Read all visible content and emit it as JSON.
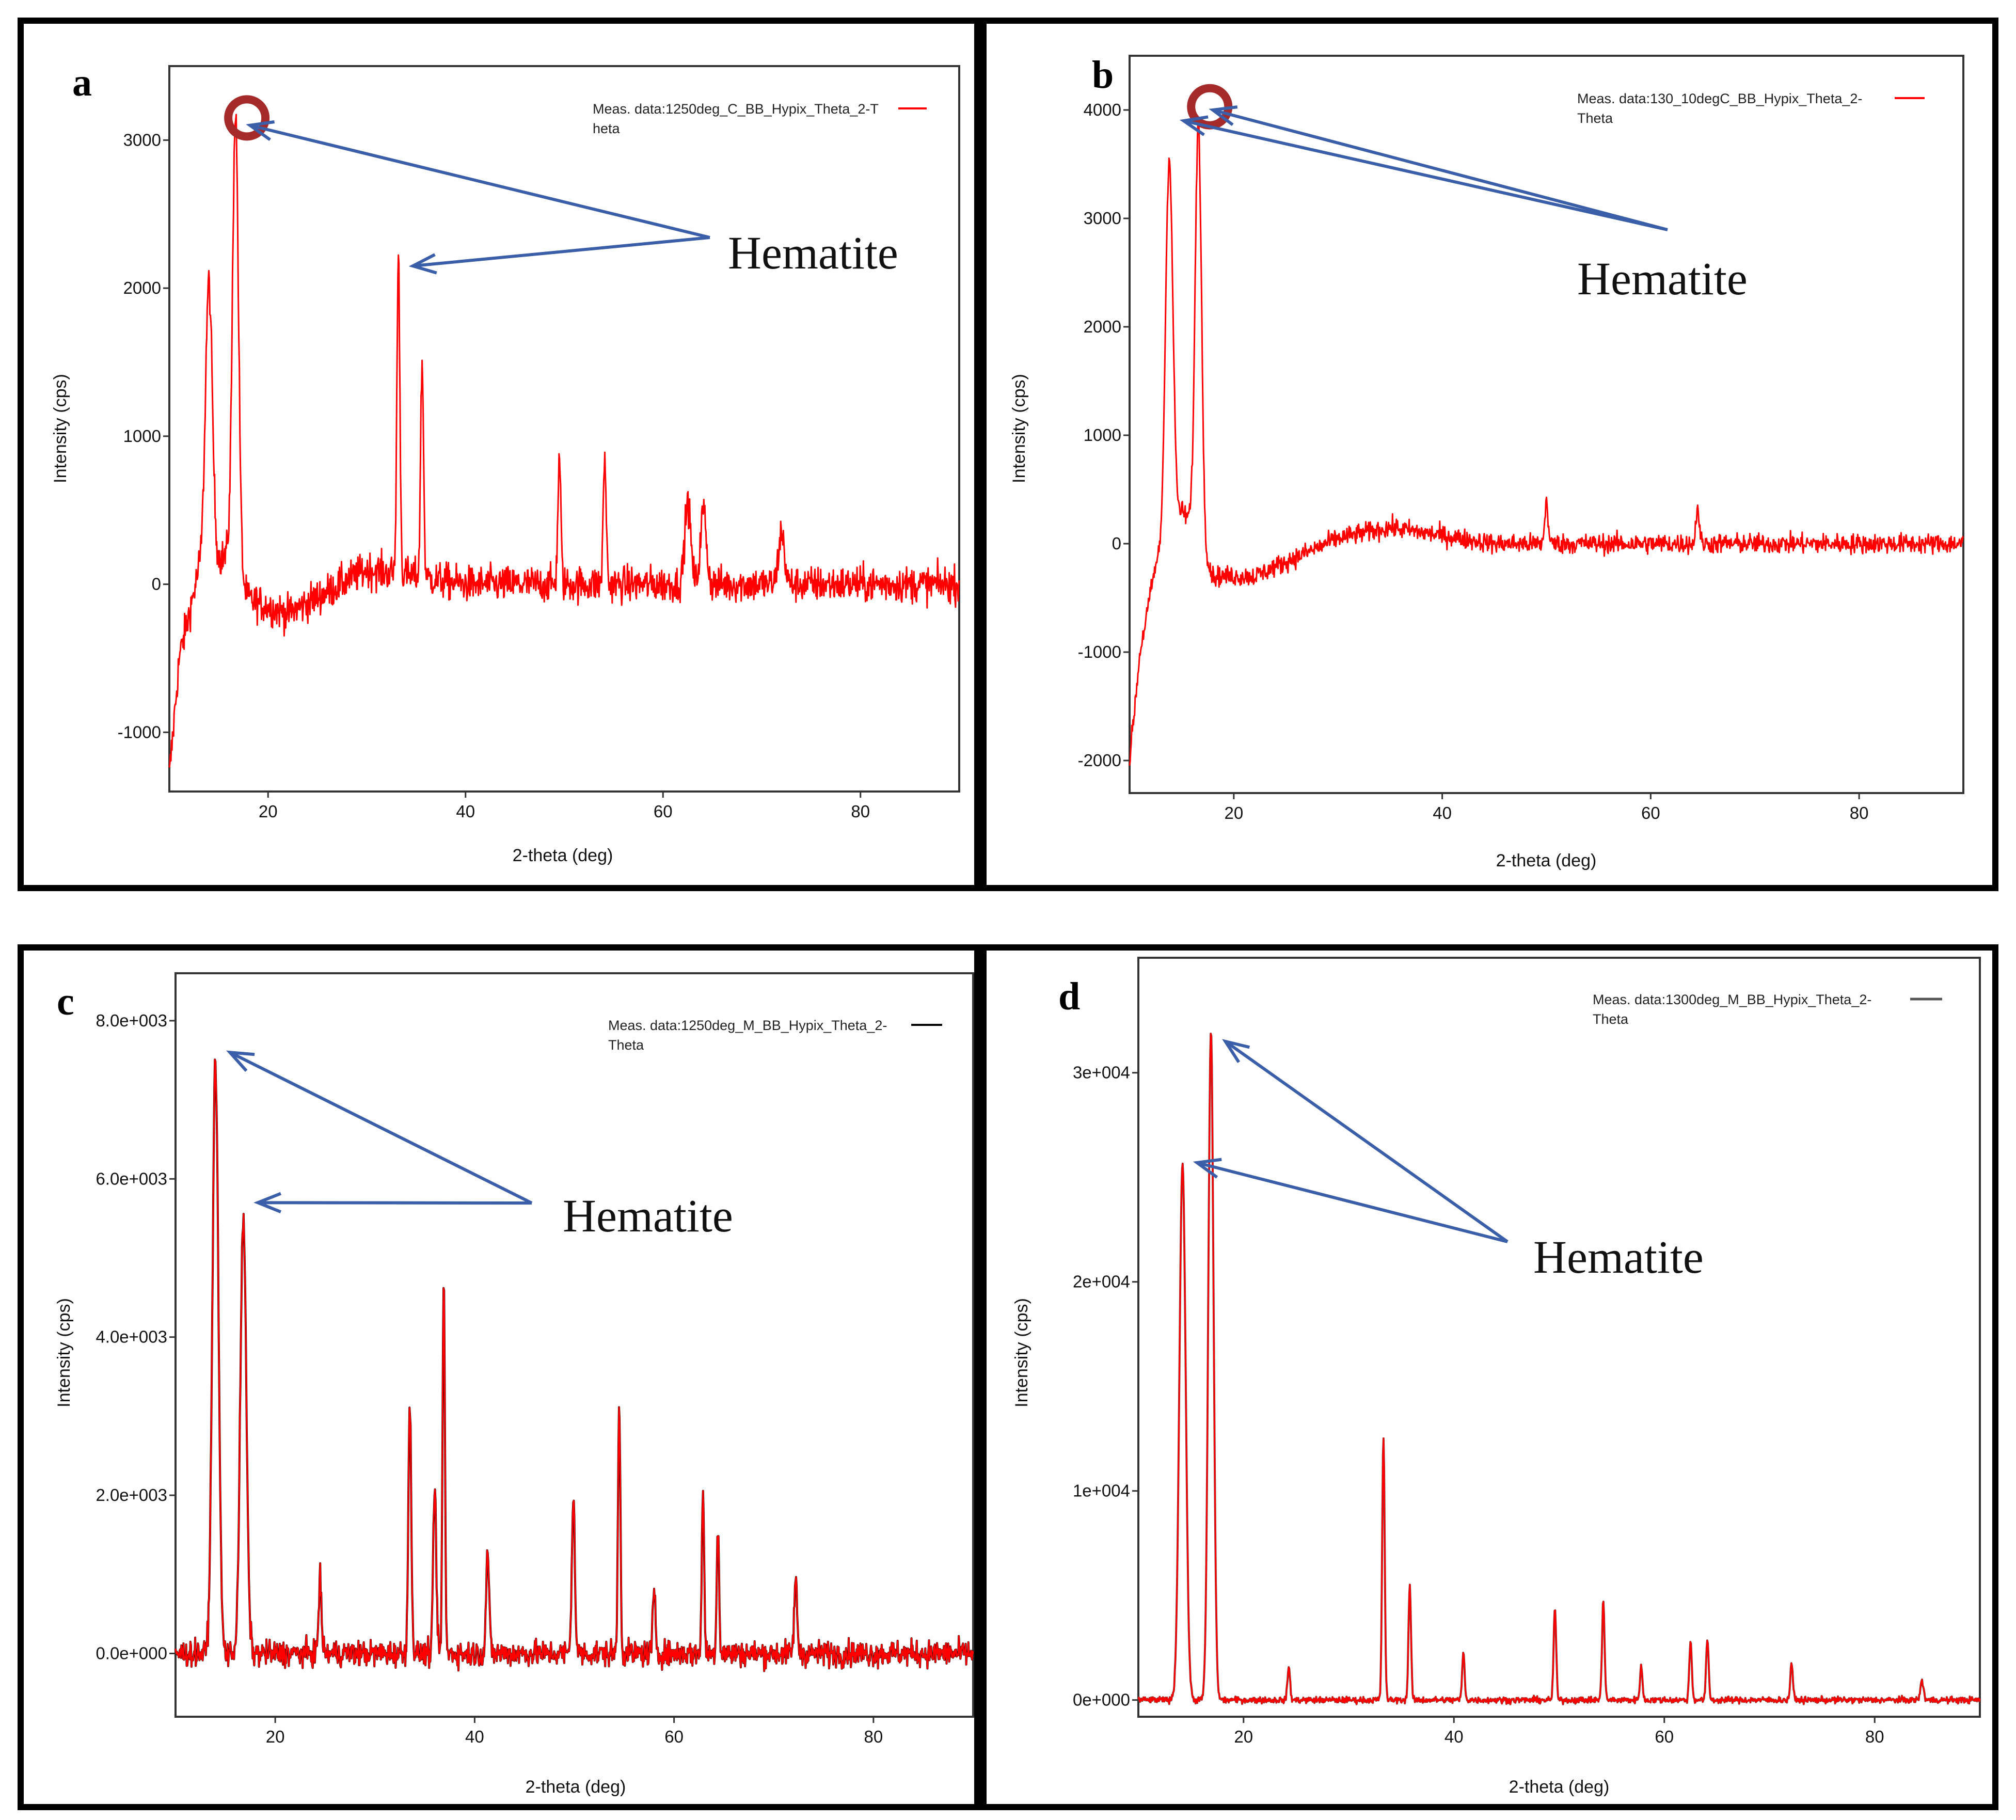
{
  "chart_data": [
    {
      "panel_letter": "a",
      "type": "line",
      "xlabel": "2-theta (deg)",
      "ylabel": "Intensity (cps)",
      "xlim": [
        10,
        90
      ],
      "ylim": [
        -1400,
        3500
      ],
      "xticks": [
        20,
        40,
        60,
        80
      ],
      "yticks": [
        -1000,
        0,
        1000,
        2000,
        3000
      ],
      "ytick_labels": [
        "-1000",
        "0",
        "1000",
        "2000",
        "3000"
      ],
      "legend": [
        "Meas. data:1250deg_C_BB_Hypix_Theta_2-T",
        "heta"
      ],
      "series": [
        {
          "name": "Meas. data:1250deg_C_BB_Hypix_Theta_2-Theta",
          "color": "#ff0000",
          "trace_color": "#ff0000",
          "noise": 120,
          "baseline": [
            [
              10,
              -1300
            ],
            [
              11,
              -500
            ],
            [
              13,
              100
            ],
            [
              16,
              200
            ],
            [
              18,
              -100
            ],
            [
              22,
              -200
            ],
            [
              30,
              100
            ],
            [
              40,
              0
            ],
            [
              60,
              0
            ],
            [
              90,
              0
            ]
          ],
          "peaks": [
            [
              14.0,
              1900,
              0.35
            ],
            [
              16.7,
              3100,
              0.3
            ],
            [
              33.2,
              2150,
              0.15
            ],
            [
              35.6,
              1450,
              0.15
            ],
            [
              49.5,
              850,
              0.15
            ],
            [
              54.1,
              850,
              0.15
            ],
            [
              62.5,
              550,
              0.3
            ],
            [
              64.1,
              500,
              0.3
            ],
            [
              72.0,
              350,
              0.3
            ]
          ]
        }
      ],
      "annotation": {
        "text": "Hematite",
        "marked_peaks": [
          [
            16.7,
            3100
          ],
          [
            33.2,
            2150
          ]
        ],
        "circle_at": [
          16.7,
          3150
        ]
      }
    },
    {
      "panel_letter": "b",
      "type": "line",
      "xlabel": "2-theta (deg)",
      "ylabel": "Intensity (cps)",
      "xlim": [
        10,
        90
      ],
      "ylim": [
        -2300,
        4500
      ],
      "xticks": [
        20,
        40,
        60,
        80
      ],
      "yticks": [
        -2000,
        -1000,
        0,
        1000,
        2000,
        3000,
        4000
      ],
      "ytick_labels": [
        "-2000",
        "-1000",
        "0",
        "1000",
        "2000",
        "3000",
        "4000"
      ],
      "legend": [
        "Meas. data:130_10degC_BB_Hypix_Theta_2-",
        "Theta"
      ],
      "series": [
        {
          "name": "Meas. data:130_10degC_BB_Hypix_Theta_2-Theta",
          "color": "#ff0000",
          "trace_color": "#ff0000",
          "noise": 90,
          "baseline": [
            [
              10,
              -2000
            ],
            [
              11,
              -1000
            ],
            [
              12.5,
              -200
            ],
            [
              15,
              300
            ],
            [
              16,
              200
            ],
            [
              18,
              -300
            ],
            [
              22,
              -300
            ],
            [
              30,
              50
            ],
            [
              35,
              150
            ],
            [
              45,
              0
            ],
            [
              90,
              0
            ]
          ],
          "peaks": [
            [
              13.8,
              3500,
              0.35
            ],
            [
              16.6,
              3850,
              0.3
            ],
            [
              50.0,
              400,
              0.15
            ],
            [
              64.5,
              350,
              0.15
            ]
          ]
        }
      ],
      "annotation": {
        "text": "Hematite",
        "marked_peaks": [
          [
            13.8,
            3900
          ],
          [
            16.6,
            4000
          ]
        ],
        "circle_at": [
          16.6,
          4030
        ]
      }
    },
    {
      "panel_letter": "c",
      "type": "line",
      "xlabel": "2-theta (deg)",
      "ylabel": "Intensity (cps)",
      "xlim": [
        10,
        90
      ],
      "ylim": [
        -800,
        8600
      ],
      "xticks": [
        20,
        40,
        60,
        80
      ],
      "yticks": [
        0,
        2000,
        4000,
        6000,
        8000
      ],
      "ytick_labels": [
        "0.0e+000",
        "2.0e+003",
        "4.0e+003",
        "6.0e+003",
        "8.0e+003"
      ],
      "legend": [
        "Meas. data:1250deg_M_BB_Hypix_Theta_2-",
        "Theta"
      ],
      "series": [
        {
          "name": "Meas. data:1250deg_M_BB_Hypix_Theta_2-Theta",
          "color": "#000000",
          "trace_color": "#ff0000",
          "noise": 160,
          "baseline": [
            [
              10,
              0
            ],
            [
              90,
              0
            ]
          ],
          "peaks": [
            [
              14.0,
              7500,
              0.3
            ],
            [
              16.8,
              5500,
              0.3
            ],
            [
              24.5,
              900,
              0.15
            ],
            [
              33.5,
              3100,
              0.15
            ],
            [
              36.0,
              2100,
              0.15
            ],
            [
              36.9,
              4700,
              0.12
            ],
            [
              41.3,
              1300,
              0.15
            ],
            [
              49.9,
              2000,
              0.15
            ],
            [
              54.5,
              3200,
              0.12
            ],
            [
              58.0,
              700,
              0.15
            ],
            [
              62.9,
              2000,
              0.12
            ],
            [
              64.4,
              1600,
              0.12
            ],
            [
              72.2,
              900,
              0.15
            ]
          ]
        }
      ],
      "annotation": {
        "text": "Hematite",
        "marked_peaks": [
          [
            14.0,
            7600
          ],
          [
            16.8,
            5700
          ]
        ]
      }
    },
    {
      "panel_letter": "d",
      "type": "line",
      "xlabel": "2-theta (deg)",
      "ylabel": "Intensity (cps)",
      "xlim": [
        10,
        90
      ],
      "ylim": [
        -800,
        35500
      ],
      "xticks": [
        20,
        40,
        60,
        80
      ],
      "yticks": [
        0,
        10000,
        20000,
        30000
      ],
      "ytick_labels": [
        "0e+000",
        "1e+004",
        "2e+004",
        "3e+004"
      ],
      "legend": [
        "Meas. data:1300deg_M_BB_Hypix_Theta_2-",
        "Theta"
      ],
      "series": [
        {
          "name": "Meas. data:1300deg_M_BB_Hypix_Theta_2-Theta",
          "color": "#555555",
          "trace_color": "#ff0000",
          "noise": 150,
          "baseline": [
            [
              10,
              0
            ],
            [
              90,
              0
            ]
          ],
          "peaks": [
            [
              14.2,
              25700,
              0.3
            ],
            [
              16.9,
              32000,
              0.25
            ],
            [
              24.3,
              1600,
              0.12
            ],
            [
              33.3,
              12600,
              0.12
            ],
            [
              35.8,
              5500,
              0.12
            ],
            [
              40.9,
              2200,
              0.12
            ],
            [
              49.6,
              4400,
              0.12
            ],
            [
              54.2,
              4800,
              0.12
            ],
            [
              57.8,
              1600,
              0.12
            ],
            [
              62.5,
              2800,
              0.12
            ],
            [
              64.1,
              2900,
              0.12
            ],
            [
              72.1,
              1800,
              0.12
            ],
            [
              84.5,
              900,
              0.15
            ]
          ]
        }
      ],
      "annotation": {
        "text": "Hematite",
        "marked_peaks": [
          [
            14.2,
            25700
          ],
          [
            16.9,
            31500
          ]
        ]
      }
    }
  ]
}
